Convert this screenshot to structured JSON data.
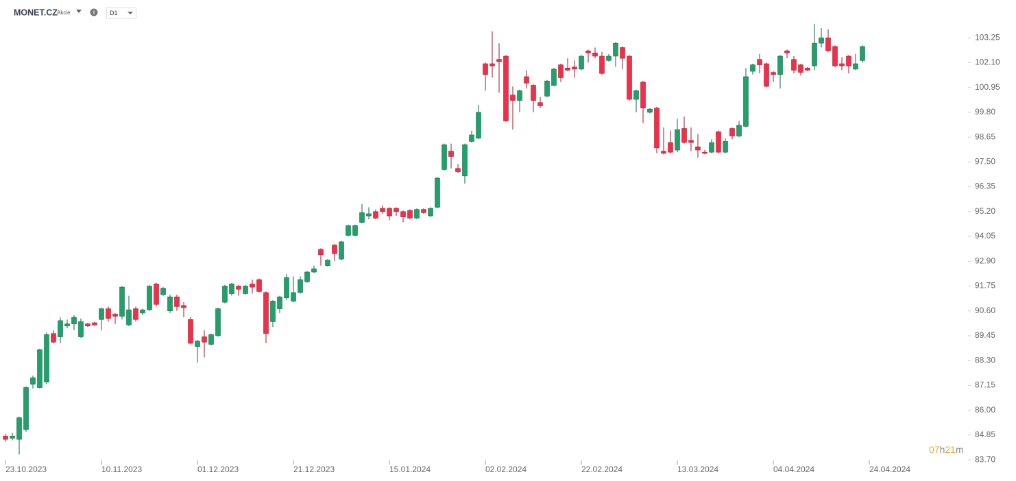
{
  "header": {
    "symbol": "MONET.CZ",
    "kind": "Akcie",
    "interval": "D1"
  },
  "countdown": [
    "07",
    "h",
    "21",
    "m"
  ],
  "chart_data": {
    "type": "candlestick",
    "up_color": "#22a06b",
    "down_color": "#f0304a",
    "categories": [
      "23.10.2023",
      null,
      null,
      null,
      null,
      null,
      null,
      null,
      null,
      null,
      null,
      null,
      null,
      null,
      "10.11.2023",
      null,
      null,
      null,
      null,
      null,
      null,
      null,
      null,
      null,
      null,
      null,
      null,
      null,
      "01.12.2023",
      null,
      null,
      null,
      null,
      null,
      null,
      null,
      null,
      null,
      null,
      null,
      null,
      null,
      "21.12.2023",
      null,
      null,
      null,
      null,
      null,
      null,
      null,
      null,
      null,
      null,
      null,
      null,
      null,
      "15.01.2024",
      null,
      null,
      null,
      null,
      null,
      null,
      null,
      null,
      null,
      null,
      null,
      null,
      null,
      "02.02.2024",
      null,
      null,
      null,
      null,
      null,
      null,
      null,
      null,
      null,
      null,
      null,
      null,
      null,
      "22.02.2024",
      null,
      null,
      null,
      null,
      null,
      null,
      null,
      null,
      null,
      null,
      null,
      null,
      null,
      "13.03.2024",
      null,
      null,
      null,
      null,
      null,
      null,
      null,
      null,
      null,
      null,
      null,
      null,
      null,
      "04.04.2024",
      null,
      null,
      null,
      null,
      null,
      null,
      null,
      null,
      null,
      null,
      null,
      null,
      null,
      "24.04.2024"
    ],
    "open": [
      84.8,
      84.7,
      84.65,
      85.1,
      87.2,
      87.05,
      87.3,
      89.55,
      89.4,
      89.9,
      90.0,
      89.4,
      90.0,
      90.05,
      90.2,
      90.7,
      90.45,
      90.35,
      89.95,
      90.7,
      90.5,
      90.65,
      91.85,
      91.35,
      90.6,
      91.25,
      90.85,
      90.2,
      88.95,
      89.4,
      89.05,
      89.45,
      91.0,
      91.4,
      91.75,
      91.4,
      91.85,
      92.05,
      91.45,
      90.1,
      90.7,
      91.2,
      91.05,
      91.45,
      91.95,
      92.4,
      93.45,
      92.7,
      93.65,
      93.0,
      94.1,
      94.1,
      94.7,
      95.0,
      95.2,
      95.35,
      95.35,
      95.35,
      95.2,
      95.25,
      94.9,
      95.3,
      95.0,
      95.4,
      97.15,
      98.0,
      97.2,
      96.85,
      98.45,
      98.6,
      102.05,
      102.05,
      102.25,
      102.4,
      100.6,
      100.35,
      101.45,
      101.05,
      100.25,
      100.55,
      101.05,
      102.0,
      101.85,
      101.9,
      101.8,
      102.65,
      102.55,
      102.4,
      102.2,
      102.4,
      102.8,
      102.4,
      100.4,
      101.2,
      99.8,
      100.0,
      98.0,
      98.4,
      98.05,
      99.05,
      98.5,
      98.2,
      97.95,
      97.95,
      98.9,
      97.95,
      99.05,
      98.7,
      99.15,
      101.7,
      102.25,
      102.05,
      101.65,
      101.55,
      102.65,
      102.25,
      102.0,
      101.85,
      101.95,
      103.0,
      103.25,
      102.85,
      102.05,
      102.4,
      101.8,
      102.2,
      null
    ],
    "high": [
      84.9,
      84.95,
      85.7,
      87.1,
      87.6,
      88.85,
      89.6,
      89.7,
      90.3,
      90.2,
      90.4,
      90.25,
      90.05,
      90.1,
      90.75,
      90.8,
      90.5,
      91.75,
      91.3,
      90.8,
      90.7,
      91.8,
      91.9,
      91.7,
      91.35,
      91.35,
      91.0,
      90.3,
      89.25,
      89.7,
      89.55,
      90.75,
      91.8,
      91.9,
      91.8,
      91.8,
      92.05,
      92.1,
      91.5,
      91.1,
      91.3,
      92.3,
      92.2,
      92.2,
      92.45,
      92.7,
      93.5,
      93.0,
      93.7,
      93.85,
      94.6,
      94.6,
      95.55,
      95.4,
      95.3,
      95.5,
      95.4,
      95.4,
      95.25,
      95.3,
      95.35,
      95.35,
      95.4,
      96.8,
      98.35,
      98.35,
      97.4,
      98.35,
      98.95,
      100.15,
      102.1,
      103.55,
      103.0,
      102.45,
      101.0,
      100.85,
      101.75,
      101.1,
      100.5,
      101.3,
      101.85,
      102.05,
      102.3,
      102.2,
      102.45,
      102.7,
      102.8,
      102.6,
      102.5,
      103.05,
      102.85,
      102.45,
      100.85,
      101.25,
      100.0,
      100.05,
      99.1,
      98.95,
      99.5,
      99.6,
      99.1,
      98.8,
      98.05,
      98.55,
      98.95,
      98.6,
      99.1,
      99.4,
      101.85,
      102.05,
      102.5,
      102.1,
      101.7,
      102.45,
      102.7,
      102.4,
      102.05,
      101.9,
      103.9,
      103.7,
      103.65,
      102.9,
      102.35,
      102.45,
      102.5,
      102.9,
      null
    ],
    "low": [
      84.55,
      84.6,
      83.95,
      85.0,
      87.0,
      87.0,
      87.2,
      89.1,
      89.1,
      89.8,
      89.7,
      89.35,
      89.85,
      89.9,
      89.7,
      90.1,
      90.0,
      90.2,
      89.9,
      90.1,
      90.4,
      90.6,
      90.8,
      91.3,
      90.5,
      90.6,
      90.3,
      89.05,
      88.2,
      88.45,
      89.0,
      89.4,
      90.95,
      91.3,
      91.3,
      91.35,
      91.4,
      91.45,
      89.1,
      89.85,
      90.5,
      91.1,
      91.0,
      91.4,
      91.9,
      92.35,
      92.7,
      92.65,
      92.9,
      92.95,
      94.05,
      94.05,
      94.65,
      94.85,
      94.85,
      95.1,
      94.8,
      95.0,
      94.7,
      94.85,
      94.85,
      95.1,
      94.95,
      95.35,
      97.1,
      97.2,
      97.0,
      96.5,
      98.4,
      98.55,
      100.8,
      101.4,
      100.7,
      99.35,
      99.0,
      99.8,
      100.9,
      99.8,
      100.0,
      100.5,
      101.0,
      101.2,
      101.7,
      101.4,
      101.75,
      102.1,
      102.3,
      101.55,
      102.15,
      101.9,
      101.8,
      100.35,
      99.8,
      99.3,
      99.75,
      97.9,
      97.85,
      97.9,
      97.95,
      98.35,
      98.0,
      97.7,
      97.85,
      97.9,
      97.9,
      97.9,
      98.55,
      98.65,
      99.1,
      101.55,
      101.6,
      100.95,
      101.2,
      100.9,
      102.3,
      101.6,
      101.5,
      101.7,
      101.75,
      102.8,
      102.6,
      101.9,
      101.75,
      101.6,
      101.75,
      102.1,
      null
    ],
    "close": [
      84.65,
      84.8,
      85.65,
      87.05,
      87.5,
      88.8,
      89.5,
      89.15,
      90.15,
      90.0,
      90.3,
      90.1,
      89.9,
      89.95,
      90.7,
      90.25,
      90.35,
      91.7,
      90.65,
      90.2,
      90.65,
      91.75,
      90.9,
      91.65,
      91.25,
      90.8,
      90.75,
      89.1,
      89.2,
      89.15,
      89.5,
      90.7,
      91.75,
      91.85,
      91.6,
      91.75,
      91.7,
      91.5,
      89.55,
      91.05,
      91.25,
      92.15,
      91.45,
      92.05,
      92.4,
      92.55,
      93.2,
      92.95,
      93.25,
      93.8,
      94.55,
      94.55,
      95.15,
      95.1,
      94.9,
      95.2,
      95.0,
      95.2,
      94.95,
      94.9,
      95.3,
      95.15,
      95.35,
      96.75,
      98.3,
      97.75,
      97.05,
      98.3,
      98.75,
      99.8,
      101.55,
      101.95,
      102.15,
      99.4,
      100.35,
      100.8,
      101.15,
      100.35,
      100.1,
      101.25,
      101.8,
      101.4,
      101.75,
      101.8,
      102.4,
      102.55,
      102.4,
      101.6,
      102.4,
      103.0,
      102.3,
      100.4,
      100.8,
      100.0,
      99.95,
      98.15,
      97.9,
      97.95,
      99.0,
      98.4,
      98.4,
      98.05,
      97.9,
      98.4,
      97.95,
      98.45,
      98.7,
      99.2,
      101.45,
      102.0,
      102.0,
      101.0,
      101.55,
      102.4,
      102.55,
      101.75,
      101.65,
      101.75,
      103.0,
      103.25,
      102.65,
      101.95,
      101.95,
      101.95,
      102.05,
      102.85,
      null
    ],
    "ylim": [
      83.1,
      104.05
    ],
    "yticks": [
      103.25,
      {
        "value": 102.1,
        "label": "102.10"
      },
      100.95,
      {
        "value": 99.8,
        "label": "99.80"
      },
      98.65,
      {
        "value": 97.5,
        "label": "97.50"
      },
      96.35,
      {
        "value": 95.2,
        "label": "95.20"
      },
      94.05,
      {
        "value": 92.9,
        "label": "92.90"
      },
      91.75,
      {
        "value": 90.6,
        "label": "90.60"
      },
      89.45,
      {
        "value": 88.3,
        "label": "88.30"
      },
      87.15,
      {
        "value": 86,
        "label": "86.00"
      },
      84.85,
      {
        "value": 83.7,
        "label": "83.70"
      }
    ]
  }
}
